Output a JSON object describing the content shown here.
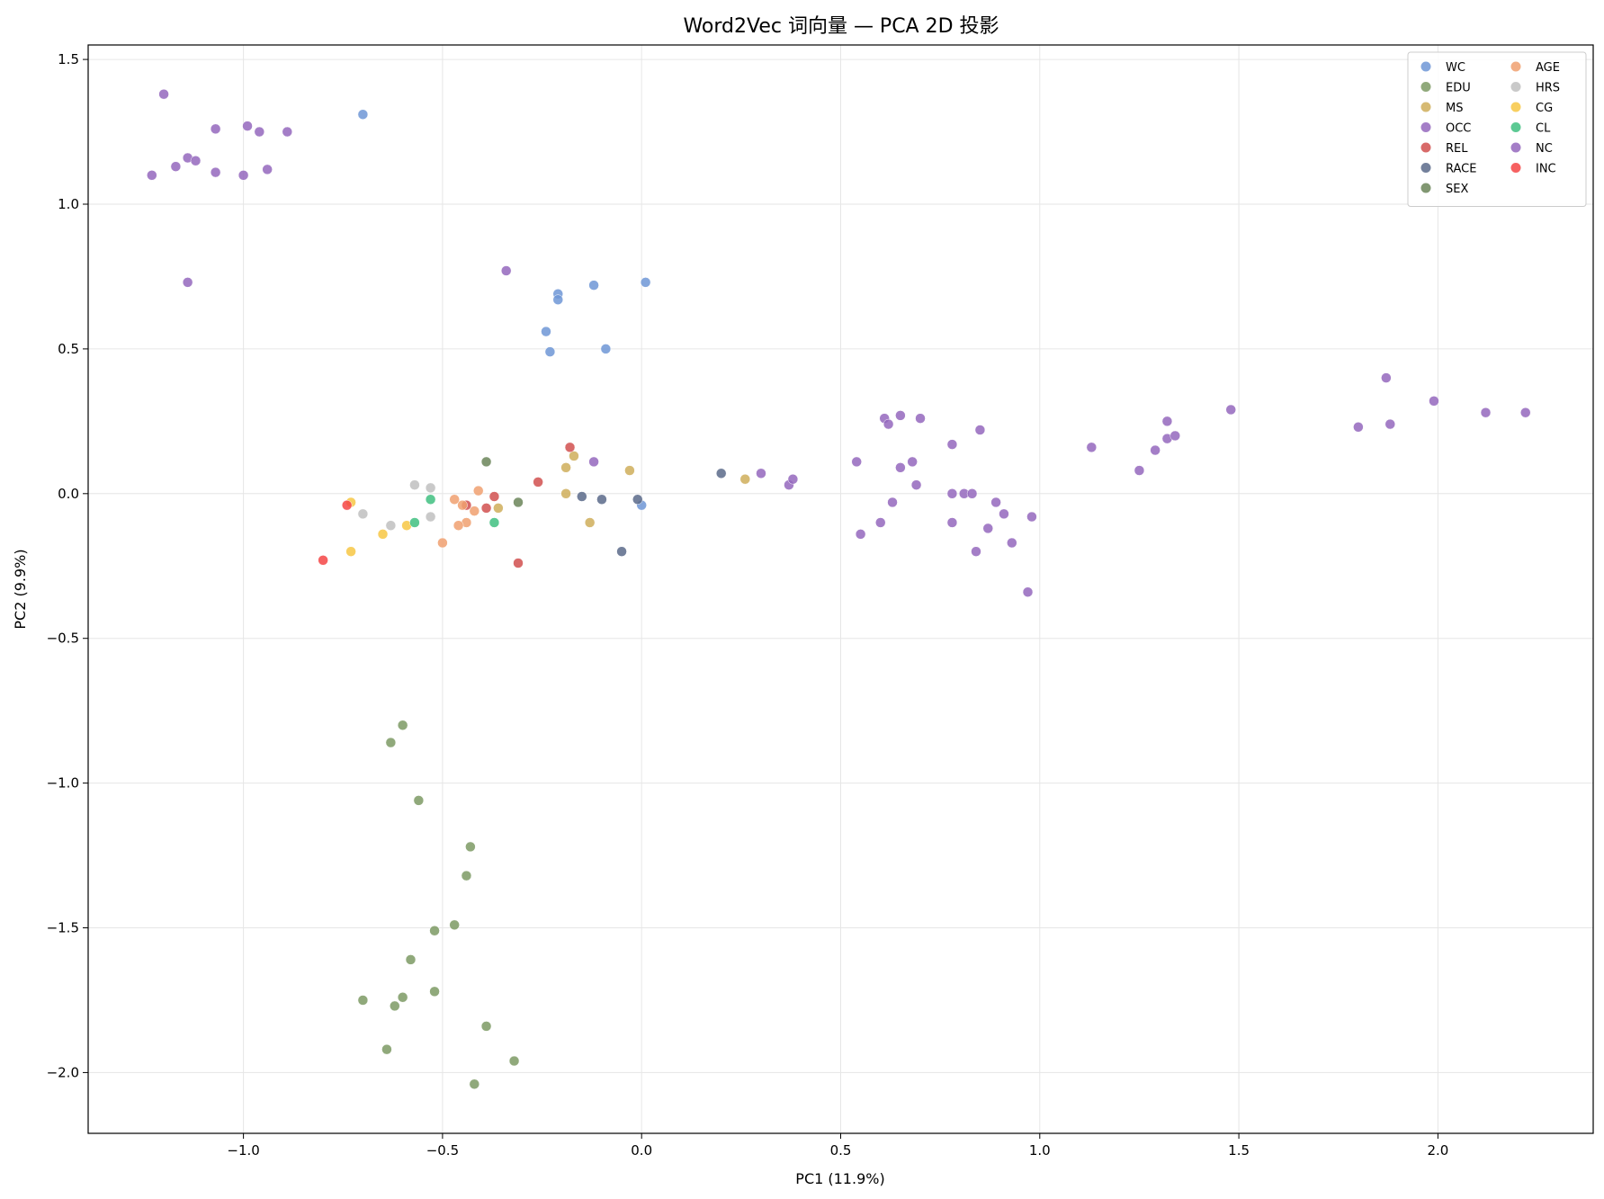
{
  "chart_data": {
    "type": "scatter",
    "title": "Word2Vec 词向量 — PCA 2D 投影",
    "xlabel": "PC1 (11.9%)",
    "ylabel": "PC2 (9.9%)",
    "xlim": [
      -1.39,
      2.39
    ],
    "ylim": [
      -2.21,
      1.55
    ],
    "xticks": [
      -1.0,
      -0.5,
      0.0,
      0.5,
      1.0,
      1.5,
      2.0
    ],
    "yticks": [
      1.5,
      1.0,
      0.5,
      0.0,
      -0.5,
      -1.0,
      -1.5,
      -2.0
    ],
    "xtick_labels": [
      "−1.0",
      "−0.5",
      "0.0",
      "0.5",
      "1.0",
      "1.5",
      "2.0"
    ],
    "ytick_labels": [
      "1.5",
      "1.0",
      "0.5",
      "0.0",
      "−0.5",
      "−1.0",
      "−1.5",
      "−2.0"
    ],
    "grid": true,
    "legend_position": "top-right",
    "legend_columns": 2,
    "series": [
      {
        "name": "WC",
        "color": "#6f97d6",
        "points": [
          [
            -0.7,
            1.31
          ],
          [
            -0.21,
            0.69
          ],
          [
            -0.21,
            0.67
          ],
          [
            -0.12,
            0.72
          ],
          [
            0.01,
            0.73
          ],
          [
            -0.24,
            0.56
          ],
          [
            -0.23,
            0.49
          ],
          [
            -0.09,
            0.5
          ],
          [
            0.0,
            -0.04
          ]
        ]
      },
      {
        "name": "EDU",
        "color": "#7d9a64",
        "points": [
          [
            -0.6,
            -0.8
          ],
          [
            -0.63,
            -0.86
          ],
          [
            -0.56,
            -1.06
          ],
          [
            -0.43,
            -1.22
          ],
          [
            -0.44,
            -1.32
          ],
          [
            -0.47,
            -1.49
          ],
          [
            -0.52,
            -1.51
          ],
          [
            -0.58,
            -1.61
          ],
          [
            -0.7,
            -1.75
          ],
          [
            -0.6,
            -1.74
          ],
          [
            -0.62,
            -1.77
          ],
          [
            -0.52,
            -1.72
          ],
          [
            -0.39,
            -1.84
          ],
          [
            -0.32,
            -1.96
          ],
          [
            -0.64,
            -1.92
          ],
          [
            -0.42,
            -2.04
          ]
        ]
      },
      {
        "name": "MS",
        "color": "#cfae5a",
        "points": [
          [
            -0.17,
            0.13
          ],
          [
            -0.19,
            0.09
          ],
          [
            -0.03,
            0.08
          ],
          [
            -0.19,
            0.0
          ],
          [
            -0.13,
            -0.1
          ],
          [
            0.26,
            0.05
          ],
          [
            -0.36,
            -0.05
          ]
        ]
      },
      {
        "name": "OCC",
        "color": "#9467bd",
        "points": [
          [
            -1.2,
            1.38
          ],
          [
            -1.23,
            1.1
          ],
          [
            -1.17,
            1.13
          ],
          [
            -1.14,
            1.16
          ],
          [
            -1.12,
            1.15
          ],
          [
            -1.07,
            1.26
          ],
          [
            -1.07,
            1.11
          ],
          [
            -0.99,
            1.27
          ],
          [
            -1.0,
            1.1
          ],
          [
            -0.96,
            1.25
          ],
          [
            -0.94,
            1.12
          ],
          [
            -0.89,
            1.25
          ],
          [
            -1.14,
            0.73
          ],
          [
            -0.34,
            0.77
          ],
          [
            -0.12,
            0.11
          ],
          [
            0.3,
            0.07
          ],
          [
            0.37,
            0.03
          ],
          [
            0.38,
            0.05
          ],
          [
            0.54,
            0.11
          ],
          [
            0.55,
            -0.14
          ],
          [
            0.6,
            -0.1
          ],
          [
            0.61,
            0.26
          ],
          [
            0.62,
            0.24
          ],
          [
            0.63,
            -0.03
          ],
          [
            0.65,
            0.27
          ],
          [
            0.65,
            0.09
          ],
          [
            0.68,
            0.11
          ],
          [
            0.69,
            0.03
          ],
          [
            0.7,
            0.26
          ],
          [
            0.78,
            0.17
          ],
          [
            0.78,
            0.0
          ],
          [
            0.78,
            -0.1
          ],
          [
            0.81,
            0.0
          ],
          [
            0.83,
            0.0
          ],
          [
            0.84,
            -0.2
          ],
          [
            0.85,
            0.22
          ],
          [
            0.87,
            -0.12
          ],
          [
            0.89,
            -0.03
          ],
          [
            0.91,
            -0.07
          ],
          [
            0.93,
            -0.17
          ],
          [
            0.97,
            -0.34
          ],
          [
            0.98,
            -0.08
          ]
        ]
      },
      {
        "name": "REL",
        "color": "#d1504f",
        "points": [
          [
            -0.18,
            0.16
          ],
          [
            -0.26,
            0.04
          ],
          [
            -0.37,
            -0.01
          ],
          [
            -0.44,
            -0.04
          ],
          [
            -0.39,
            -0.05
          ],
          [
            -0.31,
            -0.24
          ]
        ]
      },
      {
        "name": "RACE",
        "color": "#5a6a8a",
        "points": [
          [
            0.2,
            0.07
          ],
          [
            -0.15,
            -0.01
          ],
          [
            -0.1,
            -0.02
          ],
          [
            -0.01,
            -0.02
          ],
          [
            -0.05,
            -0.2
          ]
        ]
      },
      {
        "name": "SEX",
        "color": "#6b8559",
        "points": [
          [
            -0.39,
            0.11
          ],
          [
            -0.31,
            -0.03
          ]
        ]
      },
      {
        "name": "AGE",
        "color": "#f0a070",
        "points": [
          [
            -0.41,
            0.01
          ],
          [
            -0.47,
            -0.02
          ],
          [
            -0.45,
            -0.04
          ],
          [
            -0.42,
            -0.06
          ],
          [
            -0.44,
            -0.1
          ],
          [
            -0.46,
            -0.11
          ],
          [
            -0.5,
            -0.17
          ]
        ]
      },
      {
        "name": "HRS",
        "color": "#c0c0c0",
        "points": [
          [
            -0.57,
            0.03
          ],
          [
            -0.53,
            0.02
          ],
          [
            -0.7,
            -0.07
          ],
          [
            -0.53,
            -0.08
          ],
          [
            -0.63,
            -0.11
          ]
        ]
      },
      {
        "name": "CG",
        "color": "#f7c744",
        "points": [
          [
            -0.73,
            -0.03
          ],
          [
            -0.59,
            -0.11
          ],
          [
            -0.65,
            -0.14
          ],
          [
            -0.73,
            -0.2
          ]
        ]
      },
      {
        "name": "CL",
        "color": "#3fbf80",
        "points": [
          [
            -0.53,
            -0.02
          ],
          [
            -0.57,
            -0.1
          ],
          [
            -0.37,
            -0.1
          ]
        ]
      },
      {
        "name": "NC",
        "color": "#9467bd",
        "points": [
          [
            1.13,
            0.16
          ],
          [
            1.25,
            0.08
          ],
          [
            1.29,
            0.15
          ],
          [
            1.32,
            0.19
          ],
          [
            1.32,
            0.25
          ],
          [
            1.34,
            0.2
          ],
          [
            1.48,
            0.29
          ],
          [
            1.8,
            0.23
          ],
          [
            1.87,
            0.4
          ],
          [
            1.88,
            0.24
          ],
          [
            1.99,
            0.32
          ],
          [
            2.12,
            0.28
          ],
          [
            2.22,
            0.28
          ]
        ]
      },
      {
        "name": "INC",
        "color": "#f44545",
        "points": [
          [
            -0.74,
            -0.04
          ],
          [
            -0.8,
            -0.23
          ]
        ]
      }
    ]
  }
}
